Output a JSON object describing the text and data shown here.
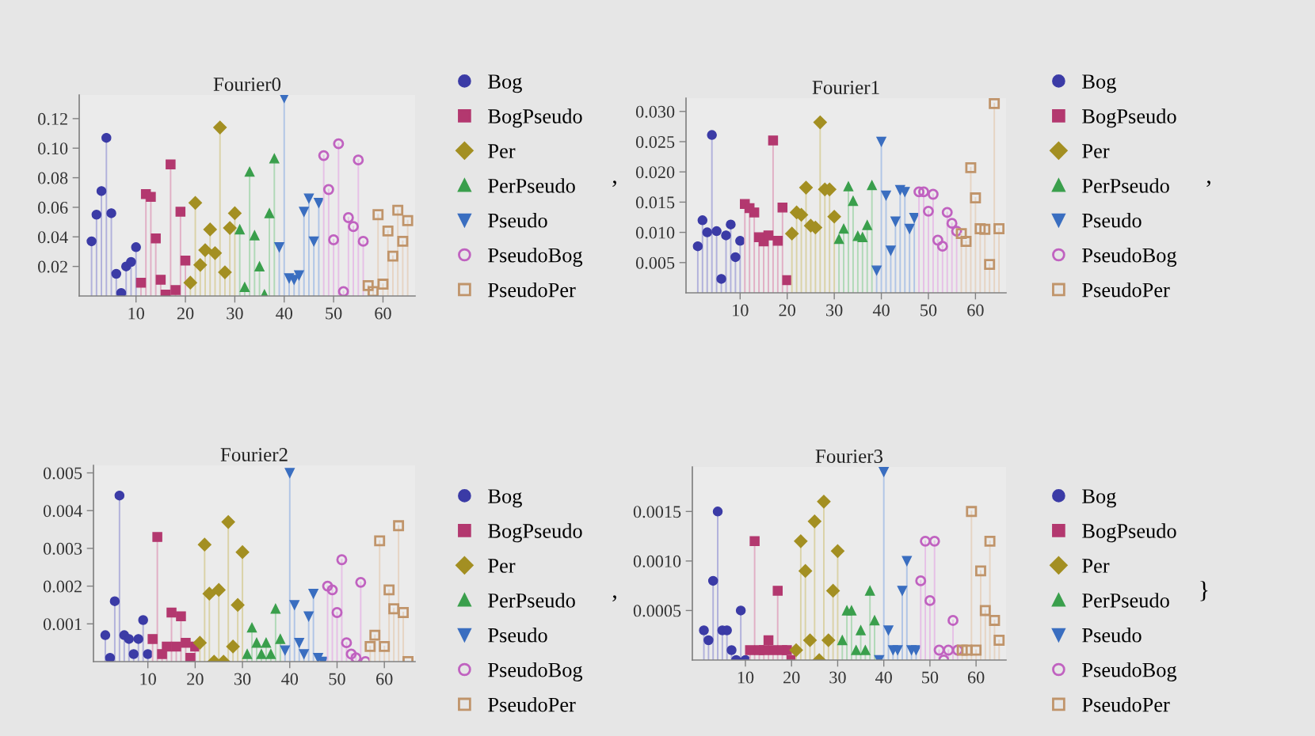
{
  "chart_data": [
    {
      "type": "lollipop",
      "title": "Fourier0",
      "xlim": [
        -1.5,
        66.5
      ],
      "xticks": [
        10,
        20,
        30,
        40,
        50,
        60
      ],
      "ylim": [
        0,
        0.136
      ],
      "yticks": [
        {
          "value": 0.02,
          "label": "0.02"
        },
        {
          "value": 0.04,
          "label": "0.04"
        },
        {
          "value": 0.06,
          "label": "0.06"
        },
        {
          "value": 0.08,
          "label": "0.08"
        },
        {
          "value": 0.1,
          "label": "0.10"
        },
        {
          "value": 0.12,
          "label": "0.12"
        }
      ],
      "grid": false,
      "legend": "right",
      "annotations": [
        ","
      ],
      "series": [
        {
          "name": "Bog",
          "color": "#3b3ba6",
          "marker": "circle",
          "x": [
            1,
            2,
            3,
            4,
            5,
            6,
            7,
            8,
            9,
            10
          ],
          "values": [
            0.037,
            0.055,
            0.071,
            0.107,
            0.056,
            0.015,
            0.002,
            0.02,
            0.023,
            0.033
          ]
        },
        {
          "name": "BogPseudo",
          "color": "#b3386f",
          "marker": "square",
          "x": [
            11,
            12,
            13,
            14,
            15,
            16,
            17,
            18,
            19,
            20
          ],
          "values": [
            0.009,
            0.069,
            0.067,
            0.039,
            0.011,
            0.001,
            0.089,
            0.004,
            0.057,
            0.024
          ]
        },
        {
          "name": "Per",
          "color": "#a38f22",
          "marker": "diamond",
          "x": [
            21,
            22,
            23,
            24,
            25,
            26,
            27,
            28,
            29,
            30
          ],
          "values": [
            0.009,
            0.063,
            0.021,
            0.031,
            0.045,
            0.029,
            0.114,
            0.016,
            0.046,
            0.056
          ]
        },
        {
          "name": "PerPseudo",
          "color": "#3a9f4c",
          "marker": "triangle",
          "x": [
            31,
            32,
            33,
            34,
            35,
            36,
            37,
            38
          ],
          "values": [
            0.045,
            0.006,
            0.084,
            0.041,
            0.02,
            0.001,
            0.056,
            0.093
          ]
        },
        {
          "name": "Pseudo",
          "color": "#3a6ec0",
          "marker": "triangle-down",
          "x": [
            39,
            40,
            41,
            42,
            43,
            44,
            45,
            46,
            47
          ],
          "values": [
            0.033,
            0.134,
            0.012,
            0.011,
            0.014,
            0.057,
            0.066,
            0.037,
            0.063
          ]
        },
        {
          "name": "PseudoBog",
          "color": "#c062c0",
          "marker": "circle-open",
          "x": [
            48,
            49,
            50,
            51,
            52,
            53,
            54,
            55,
            56
          ],
          "values": [
            0.095,
            0.072,
            0.038,
            0.103,
            0.003,
            0.053,
            0.047,
            0.092,
            0.037
          ]
        },
        {
          "name": "PseudoPer",
          "color": "#c0946a",
          "marker": "square-open",
          "x": [
            57,
            58,
            59,
            60,
            61,
            62,
            63,
            64,
            65
          ],
          "values": [
            0.007,
            0.003,
            0.055,
            0.008,
            0.044,
            0.027,
            0.058,
            0.037,
            0.051
          ]
        }
      ]
    },
    {
      "type": "lollipop",
      "title": "Fourier1",
      "xlim": [
        -1.5,
        66.5
      ],
      "xticks": [
        10,
        20,
        30,
        40,
        50,
        60
      ],
      "ylim": [
        0,
        0.0322
      ],
      "yticks": [
        {
          "value": 0.005,
          "label": "0.005"
        },
        {
          "value": 0.01,
          "label": "0.010"
        },
        {
          "value": 0.015,
          "label": "0.015"
        },
        {
          "value": 0.02,
          "label": "0.020"
        },
        {
          "value": 0.025,
          "label": "0.025"
        },
        {
          "value": 0.03,
          "label": "0.030"
        }
      ],
      "grid": false,
      "legend": "right",
      "annotations": [
        ","
      ],
      "series": [
        {
          "name": "Bog",
          "color": "#3b3ba6",
          "marker": "circle",
          "x": [
            1,
            2,
            3,
            4,
            5,
            6,
            7,
            8,
            9,
            10
          ],
          "values": [
            0.0077,
            0.012,
            0.01,
            0.0261,
            0.0102,
            0.0023,
            0.0095,
            0.0113,
            0.0059,
            0.0086
          ]
        },
        {
          "name": "BogPseudo",
          "color": "#b3386f",
          "marker": "square",
          "x": [
            11,
            12,
            13,
            14,
            15,
            16,
            17,
            18,
            19,
            20
          ],
          "values": [
            0.0147,
            0.014,
            0.0133,
            0.0092,
            0.0085,
            0.0095,
            0.0252,
            0.0086,
            0.0141,
            0.0021
          ]
        },
        {
          "name": "Per",
          "color": "#a38f22",
          "marker": "diamond",
          "x": [
            21,
            22,
            23,
            24,
            25,
            26,
            27,
            28,
            29,
            30
          ],
          "values": [
            0.0098,
            0.0133,
            0.0129,
            0.0174,
            0.0111,
            0.0108,
            0.0282,
            0.0171,
            0.0171,
            0.0126
          ]
        },
        {
          "name": "PerPseudo",
          "color": "#3a9f4c",
          "marker": "triangle",
          "x": [
            31,
            32,
            33,
            34,
            35,
            36,
            37,
            38
          ],
          "values": [
            0.0089,
            0.0106,
            0.0176,
            0.0152,
            0.0094,
            0.0092,
            0.0112,
            0.0178
          ]
        },
        {
          "name": "Pseudo",
          "color": "#3a6ec0",
          "marker": "triangle-down",
          "x": [
            39,
            40,
            41,
            42,
            43,
            44,
            45,
            46,
            47
          ],
          "values": [
            0.0037,
            0.025,
            0.0161,
            0.007,
            0.0118,
            0.017,
            0.0167,
            0.0106,
            0.0124
          ]
        },
        {
          "name": "PseudoBog",
          "color": "#c062c0",
          "marker": "circle-open",
          "x": [
            48,
            49,
            50,
            51,
            52,
            53,
            54,
            55,
            56
          ],
          "values": [
            0.0167,
            0.0167,
            0.0135,
            0.0163,
            0.0087,
            0.0077,
            0.0133,
            0.0115,
            0.0102
          ]
        },
        {
          "name": "PseudoPer",
          "color": "#c0946a",
          "marker": "square-open",
          "x": [
            57,
            58,
            59,
            60,
            61,
            62,
            63,
            64,
            65
          ],
          "values": [
            0.0098,
            0.0085,
            0.0207,
            0.0157,
            0.0106,
            0.0105,
            0.0047,
            0.0313,
            0.0106
          ]
        }
      ]
    },
    {
      "type": "lollipop",
      "title": "Fourier2",
      "xlim": [
        -1.5,
        66.5
      ],
      "xticks": [
        10,
        20,
        30,
        40,
        50,
        60
      ],
      "ylim": [
        0,
        0.0052
      ],
      "yticks": [
        0.001,
        0.002,
        0.003,
        0.004,
        0.005
      ],
      "grid": false,
      "legend": "right",
      "annotations": [
        ","
      ],
      "series": [
        {
          "name": "Bog",
          "color": "#3b3ba6",
          "marker": "circle",
          "x": [
            1,
            2,
            3,
            4,
            5,
            6,
            7,
            8,
            9,
            10
          ],
          "values": [
            0.0007,
            0.0001,
            0.0016,
            0.0044,
            0.0007,
            0.0006,
            0.0002,
            0.0006,
            0.0011,
            0.0002
          ]
        },
        {
          "name": "BogPseudo",
          "color": "#b3386f",
          "marker": "square",
          "x": [
            11,
            12,
            13,
            14,
            15,
            16,
            17,
            18,
            19,
            20
          ],
          "values": [
            0.0006,
            0.0033,
            0.0002,
            0.0004,
            0.0013,
            0.0004,
            0.0012,
            0.0005,
            0.0001,
            0.0004
          ]
        },
        {
          "name": "Per",
          "color": "#a38f22",
          "marker": "diamond",
          "x": [
            21,
            22,
            23,
            24,
            25,
            26,
            27,
            28,
            29,
            30
          ],
          "values": [
            0.0005,
            0.0031,
            0.0018,
            0,
            0.0019,
            0,
            0.0037,
            0.0004,
            0.0015,
            0.0029
          ]
        },
        {
          "name": "PerPseudo",
          "color": "#3a9f4c",
          "marker": "triangle",
          "x": [
            31,
            32,
            33,
            34,
            35,
            36,
            37,
            38
          ],
          "values": [
            0.0002,
            0.0009,
            0.0005,
            0.0002,
            0.0005,
            0.0002,
            0.0014,
            0.0006
          ]
        },
        {
          "name": "Pseudo",
          "color": "#3a6ec0",
          "marker": "triangle-down",
          "x": [
            39,
            40,
            41,
            42,
            43,
            44,
            45,
            46,
            47
          ],
          "values": [
            0.0003,
            0.005,
            0.0015,
            0.0005,
            0.0002,
            0.0012,
            0.0018,
            0.0001,
            0
          ]
        },
        {
          "name": "PseudoBog",
          "color": "#c062c0",
          "marker": "circle-open",
          "x": [
            48,
            49,
            50,
            51,
            52,
            53,
            54,
            55,
            56
          ],
          "values": [
            0.002,
            0.0019,
            0.0013,
            0.0027,
            0.0005,
            0.0002,
            0.0001,
            0.0021,
            0
          ]
        },
        {
          "name": "PseudoPer",
          "color": "#c0946a",
          "marker": "square-open",
          "x": [
            57,
            58,
            59,
            60,
            61,
            62,
            63,
            64,
            65
          ],
          "values": [
            0.0004,
            0.0007,
            0.0032,
            0.0004,
            0.0019,
            0.0014,
            0.0036,
            0.0013,
            0
          ]
        }
      ]
    },
    {
      "type": "lollipop",
      "title": "Fourier3",
      "xlim": [
        -1.5,
        66.5
      ],
      "xticks": [
        10,
        20,
        30,
        40,
        50,
        60
      ],
      "ylim": [
        0,
        0.00195
      ],
      "yticks": [
        {
          "value": 0.0005,
          "label": "0.0005"
        },
        {
          "value": 0.001,
          "label": "0.0010"
        },
        {
          "value": 0.0015,
          "label": "0.0015"
        }
      ],
      "grid": false,
      "legend": "right",
      "annotations": [
        "}"
      ],
      "series": [
        {
          "name": "Bog",
          "color": "#3b3ba6",
          "marker": "circle",
          "x": [
            1,
            2,
            3,
            4,
            5,
            6,
            7,
            8,
            9,
            10
          ],
          "values": [
            0.0003,
            0.0002,
            0.0008,
            0.0015,
            0.0003,
            0.0003,
            0.0001,
            0,
            0.0005,
            0
          ]
        },
        {
          "name": "BogPseudo",
          "color": "#b3386f",
          "marker": "square",
          "x": [
            11,
            12,
            13,
            14,
            15,
            16,
            17,
            18,
            19,
            20
          ],
          "values": [
            0.0001,
            0.0012,
            0.0001,
            0.0001,
            0.0002,
            0.0001,
            0.0007,
            0.0001,
            0.0001,
            0
          ]
        },
        {
          "name": "Per",
          "color": "#a38f22",
          "marker": "diamond",
          "x": [
            21,
            22,
            23,
            24,
            25,
            26,
            27,
            28,
            29,
            30
          ],
          "values": [
            0.0001,
            0.0012,
            0.0009,
            0.0002,
            0.0014,
            0,
            0.0016,
            0.0002,
            0.0007,
            0.0011
          ]
        },
        {
          "name": "PerPseudo",
          "color": "#3a9f4c",
          "marker": "triangle",
          "x": [
            31,
            32,
            33,
            34,
            35,
            36,
            37,
            38
          ],
          "values": [
            0.0002,
            0.0005,
            0.0005,
            0.0001,
            0.0003,
            0.0001,
            0.0007,
            0.0004
          ]
        },
        {
          "name": "Pseudo",
          "color": "#3a6ec0",
          "marker": "triangle-down",
          "x": [
            39,
            40,
            41,
            42,
            43,
            44,
            45,
            46,
            47
          ],
          "values": [
            0,
            0.0019,
            0.0003,
            0.0001,
            0.0001,
            0.0007,
            0.001,
            0.0001,
            0.0001
          ]
        },
        {
          "name": "PseudoBog",
          "color": "#c062c0",
          "marker": "circle-open",
          "x": [
            48,
            49,
            50,
            51,
            52,
            53,
            54,
            55,
            56
          ],
          "values": [
            0.0008,
            0.0012,
            0.0006,
            0.0012,
            0.0001,
            0,
            0.0001,
            0.0004,
            0.0001
          ]
        },
        {
          "name": "PseudoPer",
          "color": "#c0946a",
          "marker": "square-open",
          "x": [
            57,
            58,
            59,
            60,
            61,
            62,
            63,
            64,
            65
          ],
          "values": [
            0.0001,
            0.0001,
            0.0015,
            0.0001,
            0.0009,
            0.0005,
            0.0012,
            0.0004,
            0.0002
          ]
        }
      ]
    }
  ]
}
